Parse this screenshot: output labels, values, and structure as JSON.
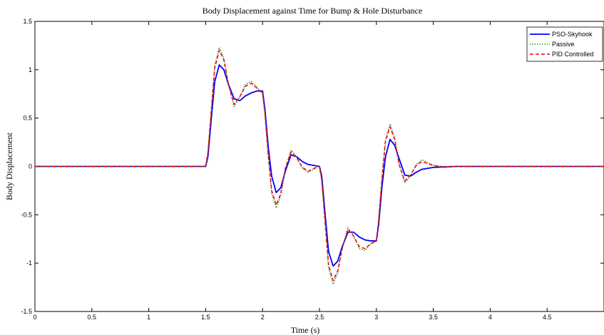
{
  "chart_data": {
    "type": "line",
    "title": "Body Displacement against Time for Bump & Hole Disturbance",
    "xlabel": "Time (s)",
    "ylabel": "Body Displacement",
    "xlim": [
      0,
      5
    ],
    "ylim": [
      -1.5,
      1.5
    ],
    "xticks": [
      0,
      0.5,
      1,
      1.5,
      2,
      2.5,
      3,
      3.5,
      4,
      4.5
    ],
    "xtick_labels": [
      "0",
      "0.5",
      "1",
      "1.5",
      "2",
      "2.5",
      "3",
      "3.5",
      "4",
      "4.5"
    ],
    "yticks": [
      -1.5,
      -1,
      -0.5,
      0,
      0.5,
      1,
      1.5
    ],
    "ytick_labels": [
      "-1.5",
      "-1",
      "-0.5",
      "0",
      "0.5",
      "1",
      "1.5"
    ],
    "grid": false,
    "legend_position": "top-right",
    "series": [
      {
        "name": "PSO-Skyhook",
        "color": "#0000ff",
        "style": "solid",
        "x": [
          0,
          1.5,
          1.52,
          1.55,
          1.58,
          1.62,
          1.66,
          1.7,
          1.75,
          1.8,
          1.85,
          1.9,
          1.95,
          2.0,
          2.02,
          2.05,
          2.08,
          2.12,
          2.16,
          2.2,
          2.25,
          2.3,
          2.35,
          2.4,
          2.45,
          2.5,
          2.52,
          2.55,
          2.58,
          2.62,
          2.66,
          2.7,
          2.75,
          2.8,
          2.85,
          2.9,
          2.95,
          3.0,
          3.02,
          3.05,
          3.08,
          3.12,
          3.16,
          3.2,
          3.25,
          3.3,
          3.35,
          3.4,
          3.45,
          3.5,
          3.6,
          3.7,
          3.8,
          4.0,
          5.0
        ],
        "y": [
          0,
          0,
          0.1,
          0.5,
          0.88,
          1.05,
          1.0,
          0.85,
          0.7,
          0.68,
          0.73,
          0.76,
          0.78,
          0.78,
          0.6,
          0.2,
          -0.1,
          -0.27,
          -0.22,
          -0.05,
          0.12,
          0.1,
          0.05,
          0.02,
          0.01,
          0,
          -0.1,
          -0.5,
          -0.88,
          -1.03,
          -0.98,
          -0.83,
          -0.68,
          -0.68,
          -0.73,
          -0.76,
          -0.77,
          -0.77,
          -0.6,
          -0.2,
          0.1,
          0.28,
          0.22,
          0.08,
          -0.09,
          -0.1,
          -0.06,
          -0.03,
          -0.02,
          -0.01,
          -0.005,
          0,
          0,
          0,
          0
        ]
      },
      {
        "name": "Passive",
        "color": "#008000",
        "style": "dotted",
        "x": [
          0,
          1.5,
          1.52,
          1.55,
          1.58,
          1.62,
          1.66,
          1.7,
          1.75,
          1.8,
          1.85,
          1.9,
          1.95,
          2.0,
          2.02,
          2.05,
          2.08,
          2.12,
          2.16,
          2.2,
          2.25,
          2.3,
          2.35,
          2.4,
          2.45,
          2.5,
          2.52,
          2.55,
          2.58,
          2.62,
          2.66,
          2.7,
          2.75,
          2.8,
          2.85,
          2.9,
          2.95,
          3.0,
          3.02,
          3.05,
          3.08,
          3.12,
          3.16,
          3.2,
          3.25,
          3.3,
          3.35,
          3.4,
          3.45,
          3.5,
          3.6,
          3.7,
          3.8,
          4.0,
          5.0
        ],
        "y": [
          0,
          0,
          0.15,
          0.6,
          1.05,
          1.23,
          1.12,
          0.85,
          0.62,
          0.72,
          0.85,
          0.88,
          0.82,
          0.75,
          0.55,
          0.1,
          -0.28,
          -0.43,
          -0.3,
          -0.02,
          0.17,
          0.1,
          -0.02,
          -0.06,
          -0.03,
          0,
          -0.15,
          -0.6,
          -1.05,
          -1.22,
          -1.1,
          -0.85,
          -0.63,
          -0.72,
          -0.85,
          -0.87,
          -0.8,
          -0.77,
          -0.55,
          -0.1,
          0.28,
          0.44,
          0.3,
          0.02,
          -0.17,
          -0.1,
          0.02,
          0.07,
          0.04,
          0.01,
          -0.01,
          0,
          0,
          0,
          0
        ]
      },
      {
        "name": "PID Controlled",
        "color": "#ff0000",
        "style": "dashed",
        "x": [
          0,
          1.5,
          1.52,
          1.55,
          1.58,
          1.62,
          1.66,
          1.7,
          1.75,
          1.8,
          1.85,
          1.9,
          1.95,
          2.0,
          2.02,
          2.05,
          2.08,
          2.12,
          2.16,
          2.2,
          2.25,
          2.3,
          2.35,
          2.4,
          2.45,
          2.5,
          2.52,
          2.55,
          2.58,
          2.62,
          2.66,
          2.7,
          2.75,
          2.8,
          2.85,
          2.9,
          2.95,
          3.0,
          3.02,
          3.05,
          3.08,
          3.12,
          3.16,
          3.2,
          3.25,
          3.3,
          3.35,
          3.4,
          3.45,
          3.5,
          3.6,
          3.7,
          3.8,
          4.0,
          5.0
        ],
        "y": [
          0,
          0,
          0.14,
          0.58,
          1.02,
          1.2,
          1.1,
          0.85,
          0.64,
          0.72,
          0.83,
          0.86,
          0.81,
          0.76,
          0.56,
          0.12,
          -0.25,
          -0.4,
          -0.28,
          -0.02,
          0.15,
          0.09,
          -0.01,
          -0.05,
          -0.02,
          0,
          -0.14,
          -0.58,
          -1.02,
          -1.18,
          -1.08,
          -0.85,
          -0.65,
          -0.72,
          -0.83,
          -0.85,
          -0.8,
          -0.77,
          -0.56,
          -0.12,
          0.26,
          0.41,
          0.28,
          0.02,
          -0.15,
          -0.09,
          0.01,
          0.05,
          0.03,
          0.01,
          -0.005,
          0,
          0,
          0,
          0
        ]
      }
    ]
  }
}
